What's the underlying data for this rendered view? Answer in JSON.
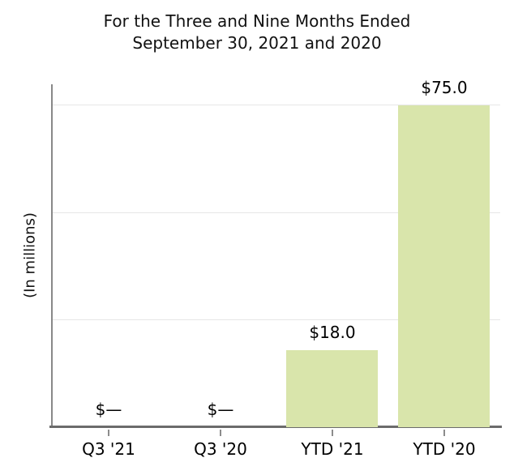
{
  "title": {
    "line1": "For the Three and Nine Months Ended",
    "line2": "September 30, 2021 and 2020"
  },
  "y_axis_label": "(In millions)",
  "colors": {
    "bar_fill": "#d9e5ab",
    "gridline": "#e6e6e6",
    "left_axis": "#888888",
    "bottom_axis": "#6b6b6b",
    "text": "#000000"
  },
  "chart_data": {
    "type": "bar",
    "title": "For the Three and Nine Months Ended September 30, 2021 and 2020",
    "categories": [
      "Q3 '21",
      "Q3 '20",
      "YTD '21",
      "YTD '20"
    ],
    "values": [
      0,
      0,
      18.0,
      75.0
    ],
    "value_labels": [
      "$—",
      "$—",
      "$18.0",
      "$75.0"
    ],
    "xlabel": "",
    "ylabel": "(In millions)",
    "ylim": [
      0,
      80
    ],
    "gridlines": [
      25,
      50,
      75
    ],
    "grid": true,
    "legend": false,
    "y_tick_labels_visible": false,
    "bar_color": "#d9e5ab"
  }
}
